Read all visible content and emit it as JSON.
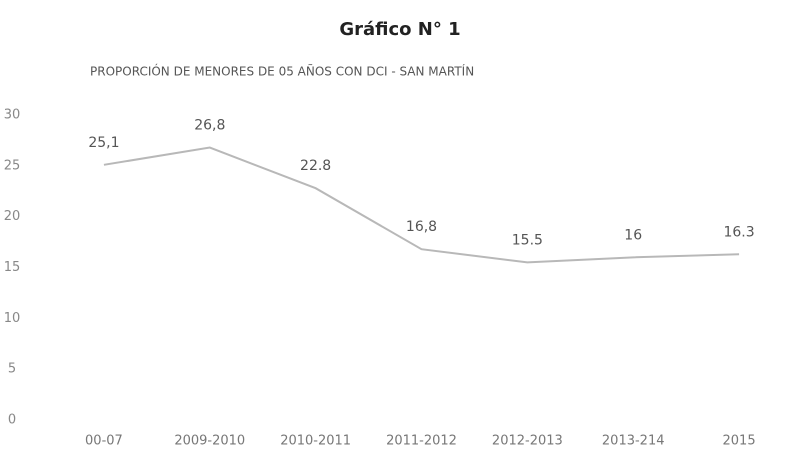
{
  "chart_data": {
    "type": "line",
    "title": "Gráfico N° 1",
    "subtitle": "PROPORCIÓN  DE MENORES  DE 05 AÑOS CON DCI - SAN MARTÍN",
    "categories": [
      "00-07",
      "2009-2010",
      "2010-2011",
      "2011-2012",
      "2012-2013",
      "2013-214",
      "2015"
    ],
    "series": [
      {
        "name": "Proporción",
        "color": "#b8b8b8",
        "values": [
          25.1,
          26.8,
          22.8,
          16.8,
          15.5,
          16,
          16.3
        ],
        "value_labels": [
          "25,1",
          "26,8",
          "22.8",
          "16,8",
          "15.5",
          "16",
          "16.3"
        ]
      }
    ],
    "ylim": [
      0,
      30
    ],
    "yticks": [
      0,
      5,
      10,
      15,
      20,
      25,
      30
    ],
    "grid": false
  }
}
